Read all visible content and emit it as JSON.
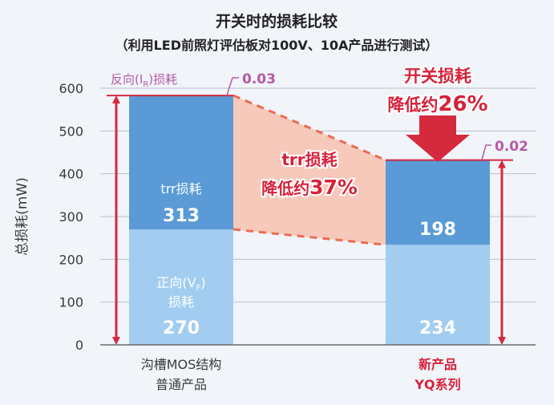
{
  "chart_data": {
    "type": "bar",
    "title": "开关时的损耗比较",
    "subtitle": "（利用LED前照灯评估板对100V、10A产品进行测试）",
    "ylabel": "总损耗(mW)",
    "ylim": [
      0,
      600
    ],
    "yticks": [
      0,
      100,
      200,
      300,
      400,
      500,
      600
    ],
    "grid": true,
    "categories": [
      {
        "line1": "沟槽MOS结构",
        "line2": "普通产品"
      },
      {
        "line1": "新产品",
        "line2": "YQ系列"
      }
    ],
    "series": [
      {
        "key": "forward",
        "label_line1": "正向(V",
        "label_sub": "F",
        "label_close": ")",
        "label_line2": "损耗",
        "values": [
          270,
          234
        ],
        "value_labels": [
          "270",
          "234"
        ]
      },
      {
        "key": "trr",
        "label_line1": "trr损耗",
        "values": [
          313,
          198
        ],
        "value_labels": [
          "313",
          "198"
        ]
      },
      {
        "key": "reverse",
        "legend_label": "反向(I",
        "legend_sub": "R",
        "legend_close": ")损耗",
        "values": [
          0.03,
          0.02
        ],
        "value_labels": [
          "0.03",
          "0.02"
        ]
      }
    ],
    "annotations": {
      "trr_reduction": {
        "line1": "trr损耗",
        "line2_prefix": "降低约",
        "line2_value": "37%"
      },
      "switching_reduction": {
        "line1": "开关损耗",
        "line2_prefix": "降低约",
        "line2_value": "26%"
      }
    },
    "colors": {
      "forward": "#a2cdf1",
      "trr": "#5a9ad6",
      "arrow": "#d52a3e",
      "magenta": "#b55aa6",
      "highlight_red": "#d6223a",
      "wedge": "#f7c9ba",
      "dashed": "#ea6d55",
      "grid": "#b9c0ca",
      "text": "#3a3a3a"
    }
  }
}
